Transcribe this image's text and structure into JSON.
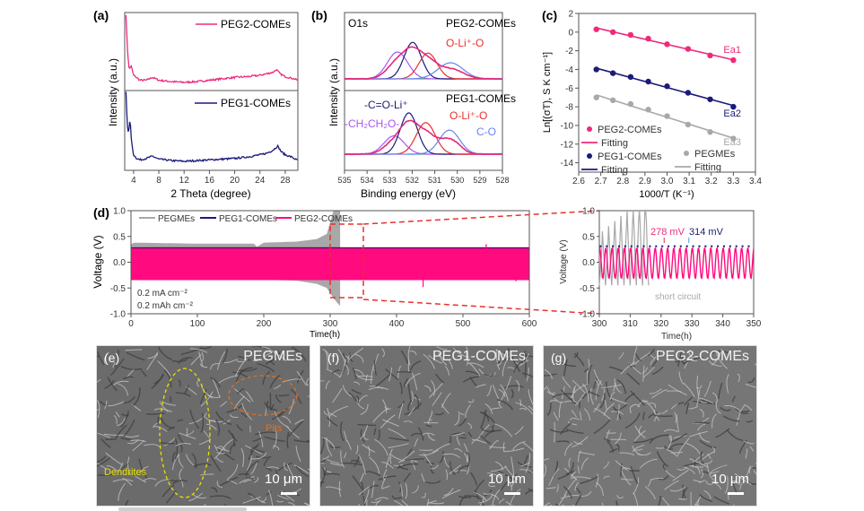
{
  "chart_data": [
    {
      "panel": "(a)",
      "type": "line",
      "xlabel": "2 Theta (degree)",
      "ylabel": "Intensity (a.u.)",
      "xlim": [
        2.6,
        30
      ],
      "xticks": [
        "4",
        "8",
        "12",
        "16",
        "20",
        "24",
        "28"
      ],
      "series": [
        {
          "name": "PEG2-COMEs",
          "color": "#ee2a7b",
          "x": [
            2.8,
            3.0,
            3.3,
            3.6,
            4.0,
            5,
            6,
            7,
            8,
            10,
            12,
            14,
            16,
            18,
            20,
            22,
            24,
            25,
            26,
            26.6,
            27.2,
            28,
            29,
            30
          ],
          "y": [
            1.0,
            0.55,
            0.22,
            0.28,
            0.14,
            0.07,
            0.07,
            0.11,
            0.07,
            0.05,
            0.04,
            0.05,
            0.07,
            0.09,
            0.11,
            0.12,
            0.14,
            0.16,
            0.18,
            0.22,
            0.16,
            0.12,
            0.1,
            0.07
          ]
        },
        {
          "name": "PEG1-COMEs",
          "color": "#1a1a7a",
          "x": [
            2.8,
            3.0,
            3.2,
            3.45,
            3.7,
            4.0,
            4.5,
            5,
            6,
            7,
            8,
            10,
            12,
            14,
            16,
            18,
            20,
            22,
            24,
            25,
            26,
            26.8,
            27.4,
            28,
            29,
            30
          ],
          "y": [
            1.0,
            0.55,
            0.45,
            0.62,
            0.3,
            0.14,
            0.09,
            0.07,
            0.09,
            0.12,
            0.08,
            0.06,
            0.05,
            0.06,
            0.07,
            0.08,
            0.09,
            0.11,
            0.14,
            0.16,
            0.2,
            0.26,
            0.18,
            0.14,
            0.11,
            0.06
          ]
        }
      ]
    },
    {
      "panel": "(b)",
      "type": "line",
      "xlabel": "Binding energy (eV)",
      "ylabel": "Intensity (a.u.)",
      "xlim": [
        535,
        528
      ],
      "xticks": [
        "535",
        "534",
        "533",
        "532",
        "531",
        "530",
        "529",
        "528"
      ],
      "subpanels": [
        {
          "name": "PEG2-COMEs",
          "core_level": "O1s",
          "peaks": [
            {
              "label": "-CH2CH2O-",
              "color": "#a855f7",
              "center": 532.65,
              "height": 0.5,
              "sigma": 0.45
            },
            {
              "label": "-C=O-Li+",
              "color": "#1a1a7a",
              "center": 531.98,
              "height": 0.68,
              "sigma": 0.38
            },
            {
              "label": "O-Li+-O",
              "color": "#e8302e",
              "center": 531.3,
              "height": 0.48,
              "sigma": 0.4
            },
            {
              "label": "C-O",
              "color": "#6b82f0",
              "center": 530.3,
              "height": 0.3,
              "sigma": 0.55
            }
          ]
        },
        {
          "name": "PEG1-COMEs",
          "peaks": [
            {
              "label": "-CH2CH2O-",
              "color": "#a855f7",
              "center": 532.8,
              "height": 0.32,
              "sigma": 0.45
            },
            {
              "label": "-C=O-Li+",
              "color": "#1a1a7a",
              "center": 532.15,
              "height": 0.72,
              "sigma": 0.38
            },
            {
              "label": "O-Li+-O",
              "color": "#e8302e",
              "center": 531.4,
              "height": 0.55,
              "sigma": 0.42
            },
            {
              "label": "C-O",
              "color": "#6b82f0",
              "center": 530.35,
              "height": 0.42,
              "sigma": 0.45
            }
          ]
        }
      ],
      "envelope_color": "#e4287a",
      "annotations": {
        "o1s": "O1s",
        "peg2": "PEG2-COMEs",
        "peg1": "PEG1-COMEs",
        "oli_top": "O-Li⁺-O",
        "co_li": "-C=O-Li⁺",
        "ch2": "-CH₂CH₂O-",
        "oli_bottom": "O-Li⁺-O",
        "co": "C-O"
      }
    },
    {
      "panel": "(c)",
      "type": "scatter",
      "xlabel": "1000/T (K⁻¹)",
      "ylabel": "Ln[(σT), S K cm⁻¹]",
      "xlim": [
        2.6,
        3.4
      ],
      "ylim": [
        -15,
        2
      ],
      "xticks": [
        "2.6",
        "2.7",
        "2.8",
        "2.9",
        "3.0",
        "3.1",
        "3.2",
        "3.3",
        "3.4"
      ],
      "yticks": [
        "2",
        "0",
        "-2",
        "-4",
        "-6",
        "-8",
        "-10",
        "-12",
        "-14"
      ],
      "x": [
        2.68,
        2.755,
        2.835,
        2.915,
        3.0,
        3.095,
        3.195,
        3.3
      ],
      "series": [
        {
          "name": "PEG2-COMEs",
          "color": "#ee2a7b",
          "y": [
            0.3,
            0.0,
            -0.3,
            -0.7,
            -1.3,
            -1.8,
            -2.5,
            -3.0
          ],
          "fit_label": "Ea1"
        },
        {
          "name": "PEG1-COMEs",
          "color": "#1a1a7a",
          "y": [
            -4.0,
            -4.4,
            -4.8,
            -5.3,
            -5.8,
            -6.5,
            -7.2,
            -8.0
          ],
          "fit_label": "Ea2"
        },
        {
          "name": "PEGMEs",
          "color": "#a8a8a8",
          "y": [
            -7.0,
            -7.3,
            -7.7,
            -8.3,
            -9.0,
            -9.9,
            -10.7,
            -11.4
          ],
          "fit_label": "Ea3"
        }
      ],
      "legend": [
        "PEG2-COMEs",
        "Fitting",
        "PEG1-COMEs",
        "Fitting",
        "PEGMEs",
        "Fitting"
      ],
      "legend_position": "bottom-left"
    },
    {
      "panel": "(d)",
      "type": "line",
      "xlabel": "Time(h)",
      "ylabel": "Voltage (V)",
      "xlim": [
        0,
        600
      ],
      "ylim": [
        -1.0,
        1.0
      ],
      "xticks": [
        "0",
        "100",
        "200",
        "300",
        "400",
        "500",
        "600"
      ],
      "yticks": [
        "1.0",
        "0.5",
        "0.0",
        "-0.5",
        "-1.0"
      ],
      "legend": [
        "PEGMEs",
        "PEG1-COMEs",
        "PEG2-COMEs"
      ],
      "legend_position": "top",
      "conditions": [
        "0.2 mA cm⁻²",
        "0.2 mAh cm⁻²"
      ],
      "series": [
        {
          "name": "PEGMEs",
          "color": "#a8a8a8",
          "envelope_t": [
            0,
            5,
            100,
            185,
            190,
            200,
            250,
            280,
            295,
            305,
            315
          ],
          "upper": [
            0.35,
            0.38,
            0.36,
            0.36,
            0.3,
            0.38,
            0.4,
            0.45,
            0.55,
            1.0,
            1.0
          ],
          "lower": [
            -0.3,
            -0.33,
            -0.34,
            -0.34,
            -0.34,
            -0.34,
            -0.36,
            -0.42,
            -0.5,
            -0.7,
            -0.85
          ]
        },
        {
          "name": "PEG1-COMEs",
          "color": "#1a1a7a",
          "envelope_t": [
            0,
            600
          ],
          "upper": [
            0.29,
            0.29
          ],
          "lower": [
            -0.33,
            -0.33
          ]
        },
        {
          "name": "PEG2-COMEs",
          "color": "#ff0a7f",
          "envelope_t": [
            0,
            600
          ],
          "upper": [
            0.27,
            0.27
          ],
          "lower": [
            -0.33,
            -0.33
          ]
        }
      ],
      "zoom_window": [
        300,
        350
      ]
    },
    {
      "panel": "(d) inset",
      "type": "line",
      "xlabel": "Time(h)",
      "ylabel": "Voltage (V)",
      "xlim": [
        300,
        350
      ],
      "ylim": [
        -1.0,
        1.0
      ],
      "xticks": [
        "300",
        "310",
        "320",
        "330",
        "340",
        "350"
      ],
      "yticks": [
        "1.0",
        "0.5",
        "0.0",
        "-0.5",
        "-1.0"
      ],
      "annotations": {
        "peg2_overpotential": "278 mV",
        "peg1_overpotential": "314 mV",
        "short_circuit": "short circuit"
      },
      "peg2_overpotential_mV": 278,
      "peg1_overpotential_mV": 314,
      "cycle_period_h": 2,
      "pegmes_short_circuit_h": 316
    }
  ],
  "panel_labels": {
    "a": "(a)",
    "b": "(b)",
    "c": "(c)",
    "d": "(d)",
    "e": "(e)",
    "f": "(f)",
    "g": "(g)"
  },
  "sem": [
    {
      "label": "(e)",
      "title": "PEGMEs",
      "scale": "10 μm",
      "annotations": {
        "dendrites": "Dendrites",
        "pits": "Pits"
      }
    },
    {
      "label": "(f)",
      "title": "PEG1-COMEs",
      "scale": "10 μm"
    },
    {
      "label": "(g)",
      "title": "PEG2-COMEs",
      "scale": "10 μm"
    }
  ]
}
